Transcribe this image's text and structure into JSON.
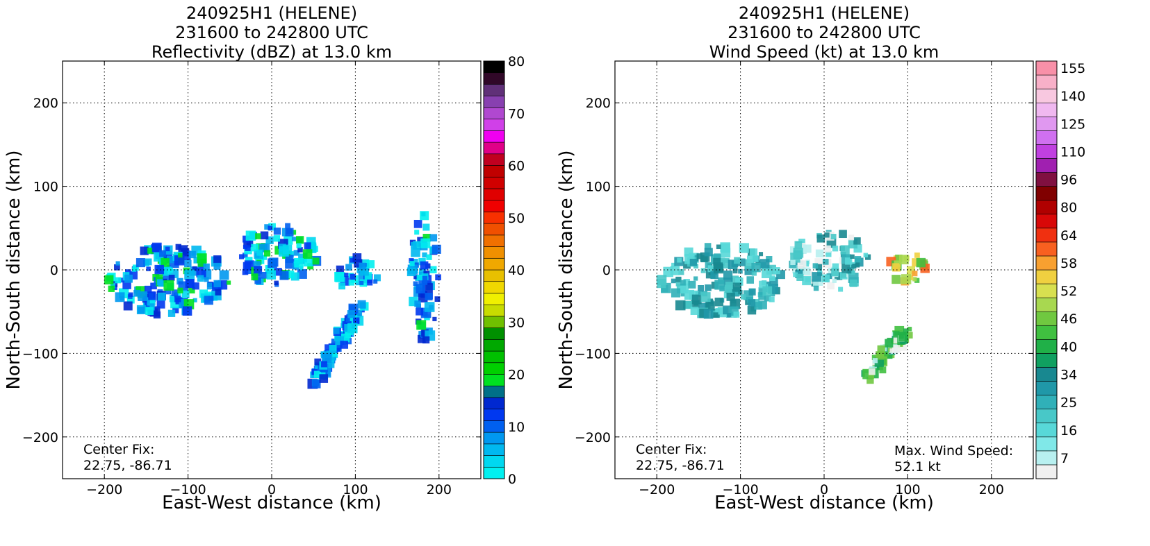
{
  "chart_data": [
    {
      "type": "heatmap",
      "title_lines": [
        "240925H1 (HELENE)",
        "231600 to 242800 UTC",
        "Reflectivity (dBZ) at 13.0 km"
      ],
      "xlabel": "East-West distance (km)",
      "ylabel": "North-South distance (km)",
      "xlim": [
        -250,
        250
      ],
      "ylim": [
        -250,
        250
      ],
      "xticks": [
        -200,
        -100,
        0,
        100,
        200
      ],
      "yticks": [
        -200,
        -100,
        0,
        100,
        200
      ],
      "grid": true,
      "colorbar": {
        "range": [
          0,
          80
        ],
        "ticks": [
          0,
          10,
          20,
          30,
          40,
          50,
          60,
          70,
          80
        ],
        "colors": [
          "#00f0f0",
          "#00d8f0",
          "#00b8f0",
          "#0098f0",
          "#0060f0",
          "#0038f0",
          "#0028d0",
          "#007088",
          "#00e020",
          "#00d000",
          "#00c000",
          "#00a800",
          "#009000",
          "#70c000",
          "#c8dc00",
          "#f0f000",
          "#f0d800",
          "#e8c000",
          "#f0a800",
          "#f09000",
          "#f07000",
          "#f05000",
          "#f83000",
          "#f00000",
          "#e00000",
          "#d00000",
          "#c00000",
          "#c00020",
          "#e00088",
          "#f000f0",
          "#d040e8",
          "#b048d0",
          "#8840b0",
          "#603078",
          "#300828",
          "#000000"
        ]
      },
      "annotation": {
        "label": "Center Fix:",
        "value": "22.75, -86.71"
      },
      "echo_regions": [
        {
          "label": "western band",
          "x_km": [
            -195,
            -50
          ],
          "y_km": [
            -55,
            30
          ],
          "max_dbz": 22
        },
        {
          "label": "central cell",
          "x_km": [
            -40,
            55
          ],
          "y_km": [
            -20,
            55
          ],
          "max_dbz": 22
        },
        {
          "label": "eastern cell",
          "x_km": [
            75,
            130
          ],
          "y_km": [
            -25,
            15
          ],
          "max_dbz": 15
        },
        {
          "label": "southern rainband",
          "x_km": [
            40,
            115
          ],
          "y_km": [
            -145,
            -40
          ],
          "max_dbz": 12
        },
        {
          "label": "far-east cells",
          "x_km": [
            165,
            200
          ],
          "y_km": [
            -85,
            70
          ],
          "max_dbz": 25
        }
      ]
    },
    {
      "type": "heatmap",
      "title_lines": [
        "240925H1 (HELENE)",
        "231600 to 242800 UTC",
        "Wind Speed (kt) at 13.0 km"
      ],
      "xlabel": "East-West distance (km)",
      "ylabel": "North-South distance (km)",
      "xlim": [
        -250,
        250
      ],
      "ylim": [
        -250,
        250
      ],
      "xticks": [
        -200,
        -100,
        0,
        100,
        200
      ],
      "yticks": [
        -200,
        -100,
        0,
        100,
        200
      ],
      "grid": true,
      "colorbar": {
        "range": [
          5,
          160
        ],
        "ticks": [
          7,
          16,
          25,
          34,
          40,
          46,
          52,
          58,
          64,
          80,
          96,
          110,
          125,
          140,
          155
        ],
        "tick_positions": [
          1,
          3,
          5,
          7,
          9,
          11,
          13,
          15,
          17,
          19,
          21,
          23,
          25,
          27,
          29
        ],
        "nbands": 30,
        "colors": [
          "#f0f0f0",
          "#b8f0f0",
          "#80e8e8",
          "#58d8d8",
          "#48c8c8",
          "#30b0b8",
          "#2098a8",
          "#188890",
          "#10a060",
          "#20b048",
          "#40c040",
          "#70c840",
          "#a8d850",
          "#d8e050",
          "#f0d040",
          "#f8a030",
          "#f86020",
          "#f03010",
          "#d80808",
          "#b00000",
          "#800000",
          "#801040",
          "#a020b0",
          "#c040e0",
          "#d070f0",
          "#e098f0",
          "#f0b8f0",
          "#f8c8e0",
          "#f8b0c8",
          "#f890a8",
          "#f87080",
          "#f05060",
          "#d83848",
          "#b82840",
          "#981840"
        ]
      },
      "annotation": {
        "label": "Center Fix:",
        "value": "22.75, -86.71"
      },
      "max_wind": {
        "label": "Max. Wind Speed:",
        "value": "52.1 kt"
      },
      "echo_regions": [
        {
          "label": "western band",
          "x_km": [
            -195,
            -50
          ],
          "y_km": [
            -55,
            30
          ],
          "max_kt": 25
        },
        {
          "label": "central cell",
          "x_km": [
            -40,
            55
          ],
          "y_km": [
            -25,
            45
          ],
          "max_kt": 34
        },
        {
          "label": "eastern jet",
          "x_km": [
            75,
            125
          ],
          "y_km": [
            -15,
            20
          ],
          "max_kt": 52
        },
        {
          "label": "southern rainband",
          "x_km": [
            40,
            110
          ],
          "y_km": [
            -140,
            -65
          ],
          "max_kt": 40
        }
      ]
    }
  ]
}
